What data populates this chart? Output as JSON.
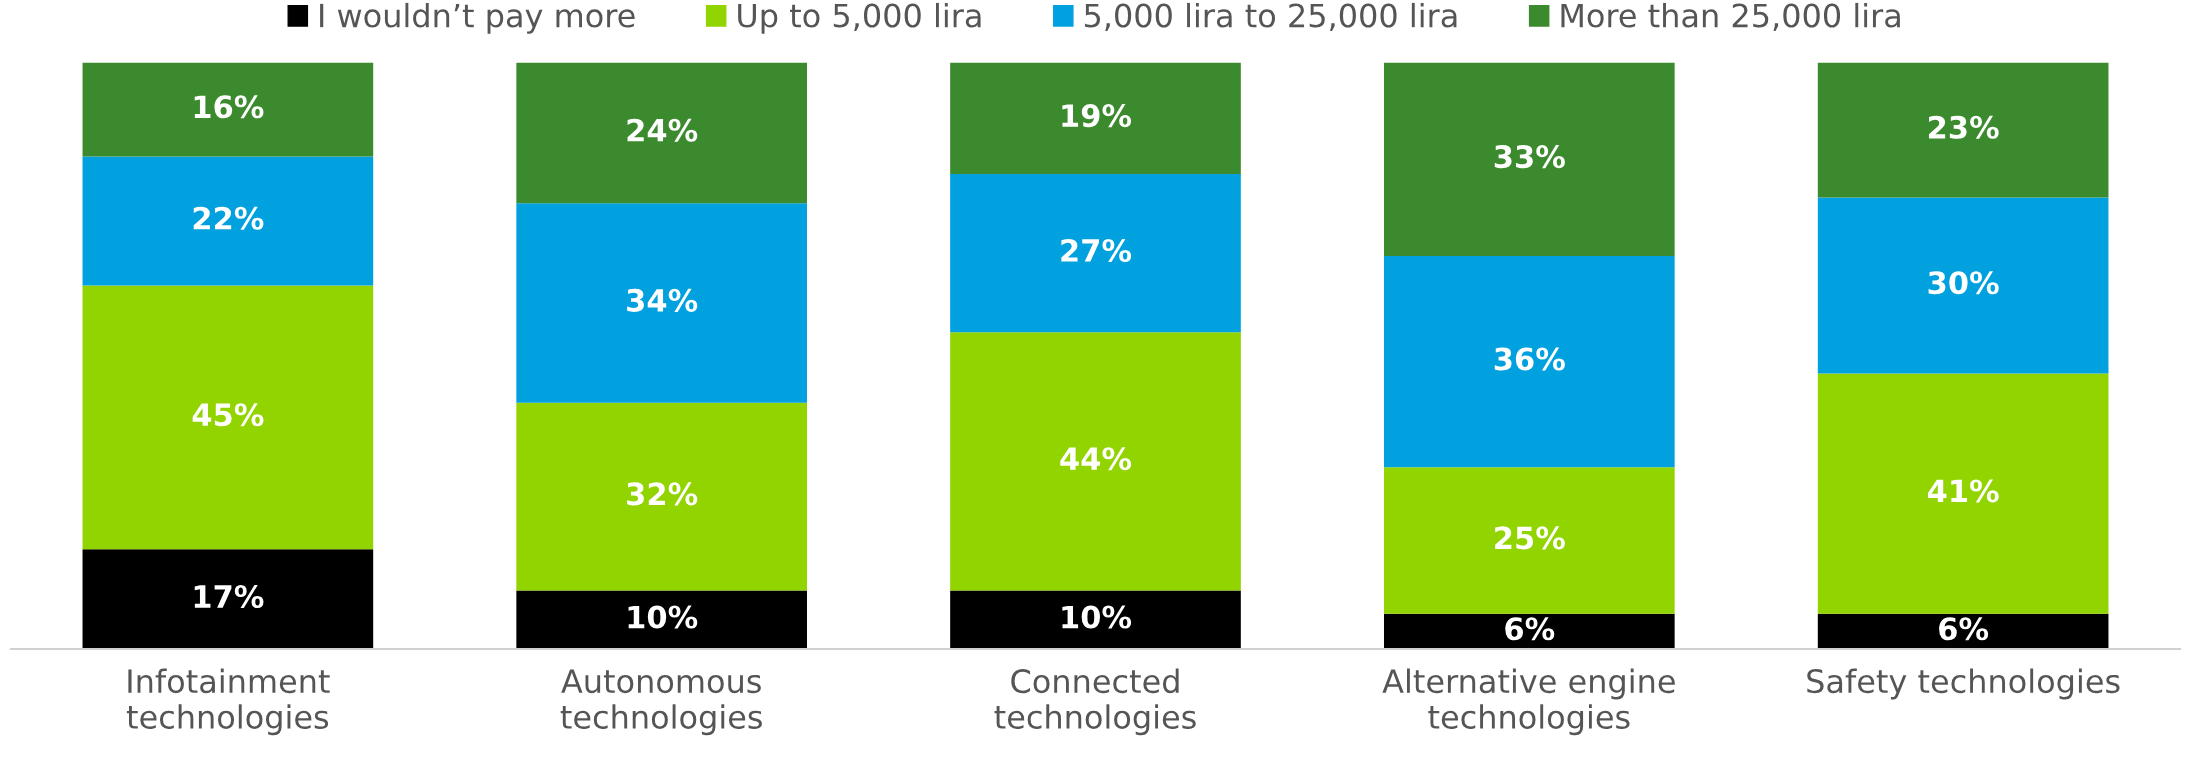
{
  "chart_data": {
    "type": "bar",
    "stacked": true,
    "legend": "top",
    "grid": false,
    "tick_labels": "x",
    "categories": [
      "Infotainment\ntechnologies",
      "Autonomous\ntechnologies",
      "Connected\ntechnologies",
      "Alternative engine\ntechnologies",
      "Safety technologies"
    ],
    "series": [
      {
        "name": "I wouldn’t pay more",
        "color": "#000000",
        "values": [
          17,
          10,
          10,
          6,
          6
        ],
        "value_labels": [
          "17%",
          "10%",
          "10%",
          "6%",
          "6%"
        ]
      },
      {
        "name": "Up to 5,000 lira",
        "color": "#92d400",
        "values": [
          45,
          32,
          44,
          25,
          41
        ],
        "value_labels": [
          "45%",
          "32%",
          "44%",
          "25%",
          "41%"
        ]
      },
      {
        "name": "5,000 lira to 25,000 lira",
        "color": "#00a1de",
        "values": [
          22,
          34,
          27,
          36,
          30
        ],
        "value_labels": [
          "22%",
          "34%",
          "27%",
          "36%",
          "30%"
        ]
      },
      {
        "name": "More than 25,000 lira",
        "color": "#3c8a2e",
        "values": [
          16,
          24,
          19,
          33,
          23
        ],
        "value_labels": [
          "16%",
          "24%",
          "19%",
          "33%",
          "23%"
        ]
      }
    ]
  }
}
